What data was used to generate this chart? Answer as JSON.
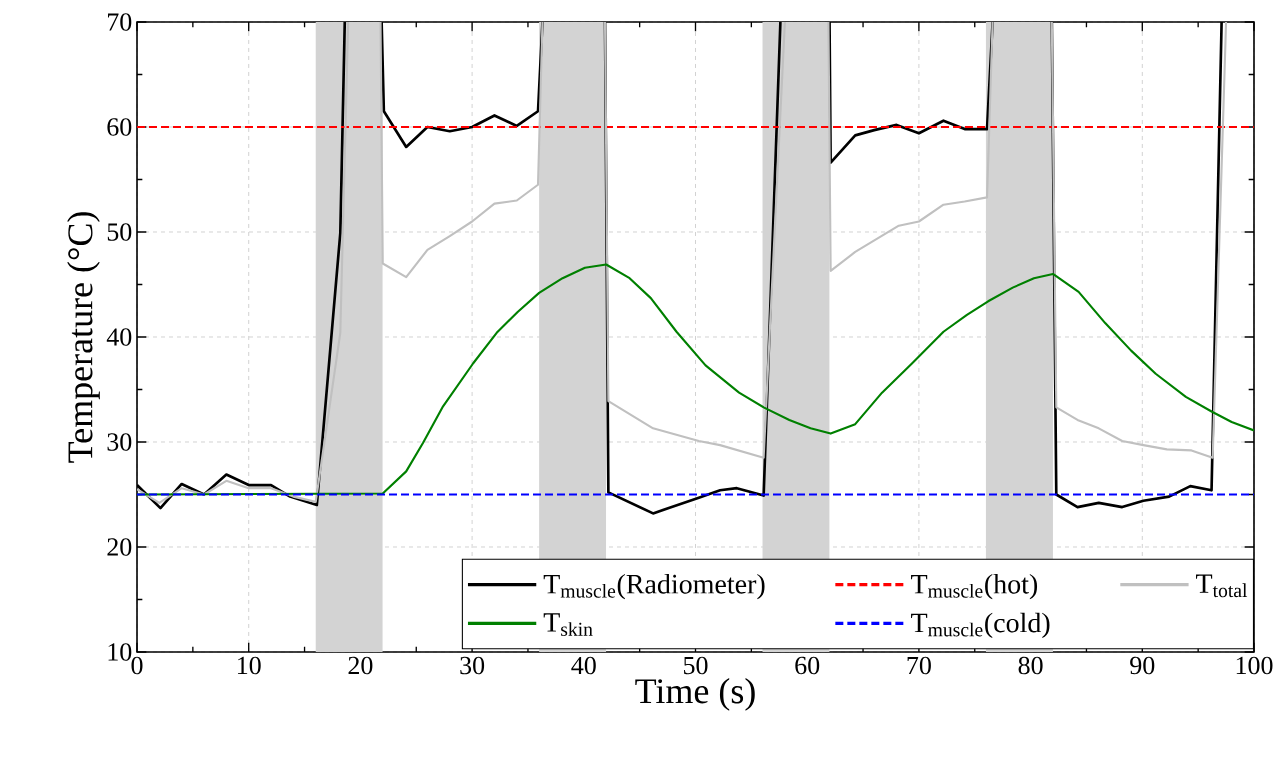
{
  "chart_data": {
    "type": "line",
    "xlabel": "Time (s)",
    "ylabel": "Temperature (°C)",
    "xlim": [
      0,
      100
    ],
    "ylim": [
      10,
      70
    ],
    "xticks": [
      0,
      10,
      20,
      30,
      40,
      50,
      60,
      70,
      80,
      90,
      100
    ],
    "yticks": [
      10,
      20,
      30,
      40,
      50,
      60,
      70
    ],
    "grid": true,
    "legend": "bottom right",
    "bands": [
      {
        "axis": "x",
        "from": 16,
        "to": 22,
        "color": "#d3d3d3"
      },
      {
        "axis": "x",
        "from": 36,
        "to": 42,
        "color": "#d3d3d3"
      },
      {
        "axis": "x",
        "from": 56,
        "to": 62,
        "color": "#d3d3d3"
      },
      {
        "axis": "x",
        "from": 76,
        "to": 82,
        "color": "#d3d3d3"
      }
    ],
    "series": [
      {
        "name": "T$_{muscle}$(Radiometer)",
        "color": "#000000",
        "line_style": "solid",
        "x": [
          0,
          2.1,
          4,
          6,
          8,
          10,
          12,
          13.7,
          16.1,
          18.2,
          18.6,
          20,
          21.9,
          22.1,
          24.1,
          26,
          28,
          30,
          32,
          34,
          35.9,
          36.3,
          39,
          41.9,
          42.2,
          46.2,
          50.3,
          52.2,
          53.7,
          56.1,
          57.6,
          60,
          62.0,
          62.1,
          64.3,
          66,
          68,
          70,
          72.2,
          74.1,
          76.1,
          76.6,
          79,
          81.9,
          82.3,
          84.2,
          86.1,
          88.2,
          90.1,
          92.4,
          94.3,
          96.2,
          97.1
        ],
        "values": [
          25.9,
          23.7,
          26,
          25,
          26.9,
          25.9,
          25.9,
          24.8,
          24,
          49.9,
          70,
          null,
          70,
          61.5,
          58.1,
          60.0,
          59.6,
          60.0,
          61.1,
          60.1,
          61.5,
          70,
          null,
          70,
          25.2,
          23.2,
          24.7,
          25.4,
          25.6,
          24.9,
          70,
          null,
          70,
          56.6,
          59.2,
          59.7,
          60.2,
          59.4,
          60.6,
          59.8,
          59.8,
          70,
          null,
          70,
          25.0,
          23.8,
          24.2,
          23.8,
          24.4,
          24.8,
          25.8,
          25.4,
          70
        ]
      },
      {
        "name": "T$_{muscle}$(hot)",
        "color": "#ff0000",
        "line_style": "dashed",
        "x": [
          0,
          100
        ],
        "values": [
          60,
          60
        ]
      },
      {
        "name": "T$_{total}$",
        "color": "#c0c0c0",
        "line_style": "solid",
        "x": [
          0,
          2,
          4,
          6,
          8,
          10,
          12,
          14,
          16,
          18.2,
          18.9,
          20,
          21.8,
          22,
          24.1,
          26,
          28,
          30,
          32,
          34,
          35.9,
          36.3,
          39,
          41.9,
          42.2,
          46.2,
          50.3,
          52.2,
          56.1,
          58,
          60,
          61.9,
          62.1,
          64.3,
          68.2,
          70,
          72.2,
          74.1,
          76.1,
          76.6,
          79,
          81.9,
          82.3,
          84.2,
          86.1,
          88.2,
          90.1,
          92.2,
          94.4,
          96.3,
          97.5
        ],
        "values": [
          25.5,
          24.2,
          25.6,
          25,
          26.3,
          25.6,
          25.6,
          24.8,
          24.3,
          40.4,
          70,
          null,
          70,
          47.0,
          45.7,
          48.3,
          49.6,
          51.0,
          52.7,
          53.0,
          54.5,
          70,
          null,
          70,
          33.9,
          31.3,
          30.1,
          29.7,
          28.5,
          70,
          null,
          70,
          46.3,
          48.1,
          50.6,
          51.0,
          52.6,
          52.9,
          53.3,
          70,
          null,
          70,
          33.3,
          32.1,
          31.3,
          30.1,
          29.7,
          29.3,
          29.2,
          28.5,
          70
        ]
      },
      {
        "name": "T$_{skin}$",
        "color": "#008000",
        "line_style": "solid",
        "x": [
          0,
          22,
          24.1,
          25.6,
          27.4,
          30.1,
          32.2,
          34.1,
          36,
          38.1,
          40.1,
          42,
          44.1,
          46,
          48.3,
          50.9,
          53.9,
          56.1,
          58.4,
          60.3,
          62.1,
          64.3,
          66.7,
          69.4,
          72.2,
          74.3,
          76.2,
          78.4,
          80.3,
          82,
          84.3,
          86.7,
          89,
          91.2,
          93.9,
          96.2,
          98,
          100
        ],
        "values": [
          25,
          25.1,
          27.2,
          29.9,
          33.4,
          37.5,
          40.4,
          42.4,
          44.2,
          45.6,
          46.6,
          46.9,
          45.6,
          43.7,
          40.5,
          37.3,
          34.7,
          33.3,
          32.1,
          31.3,
          30.8,
          31.7,
          34.7,
          37.5,
          40.5,
          42.1,
          43.4,
          44.7,
          45.6,
          46.0,
          44.3,
          41.3,
          38.7,
          36.5,
          34.3,
          32.9,
          31.9,
          31.1
        ]
      },
      {
        "name": "T$_{muscle}$(cold)",
        "color": "#0000ff",
        "line_style": "dashed",
        "x": [
          0,
          100
        ],
        "values": [
          25,
          25
        ]
      }
    ]
  }
}
